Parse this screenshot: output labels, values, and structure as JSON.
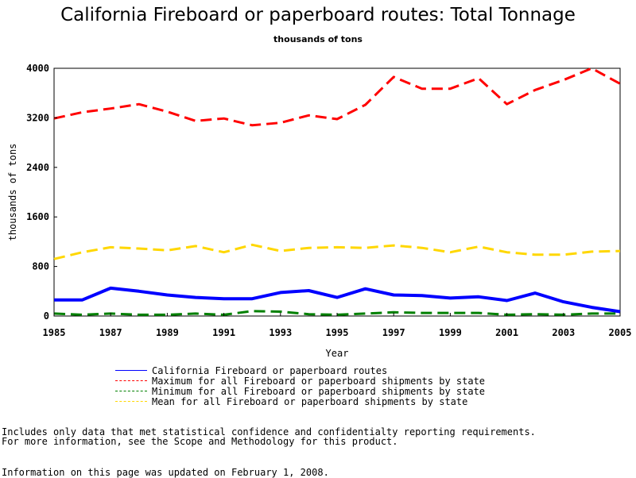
{
  "chart_data": {
    "type": "line",
    "title": "California Fireboard or paperboard routes: Total Tonnage",
    "subtitle": "thousands of tons",
    "xlabel": "Year",
    "ylabel": "thousands of tons",
    "xlim": [
      1985,
      2005
    ],
    "ylim": [
      0,
      4000
    ],
    "x_ticks": [
      "1985",
      "1987",
      "1989",
      "1991",
      "1993",
      "1995",
      "1997",
      "1999",
      "2001",
      "2003",
      "2005"
    ],
    "y_ticks": [
      "0",
      "800",
      "1600",
      "2400",
      "3200",
      "4000"
    ],
    "grid": false,
    "legend_position": "bottom",
    "x": [
      1985,
      1986,
      1987,
      1988,
      1989,
      1990,
      1991,
      1992,
      1993,
      1994,
      1995,
      1996,
      1997,
      1998,
      1999,
      2000,
      2001,
      2002,
      2003,
      2004,
      2005
    ],
    "series": [
      {
        "name": "California Fireboard or paperboard routes",
        "color": "#0000ff",
        "dash": "solid",
        "values": [
          260,
          260,
          450,
          400,
          340,
          300,
          280,
          280,
          380,
          410,
          300,
          440,
          340,
          330,
          290,
          310,
          250,
          370,
          230,
          140,
          70
        ]
      },
      {
        "name": "Maximum for all Fireboard or paperboard shipments by state",
        "color": "#ff0000",
        "dash": "dashed",
        "values": [
          3190,
          3290,
          3350,
          3420,
          3300,
          3150,
          3190,
          3080,
          3120,
          3240,
          3180,
          3410,
          3860,
          3670,
          3670,
          3840,
          3420,
          3650,
          3810,
          4000,
          3750
        ]
      },
      {
        "name": "Minimum for all Fireboard or paperboard shipments by state",
        "color": "#008000",
        "dash": "dashed",
        "values": [
          40,
          20,
          40,
          20,
          20,
          40,
          20,
          80,
          70,
          30,
          20,
          40,
          60,
          50,
          50,
          50,
          20,
          30,
          20,
          40,
          40
        ]
      },
      {
        "name": "Mean for all Fireboard or paperboard shipments by state",
        "color": "#ffd700",
        "dash": "dashed",
        "values": [
          920,
          1030,
          1110,
          1090,
          1060,
          1130,
          1030,
          1150,
          1050,
          1100,
          1110,
          1100,
          1140,
          1100,
          1030,
          1120,
          1030,
          990,
          990,
          1040,
          1050
        ]
      }
    ]
  },
  "notes": {
    "line1": "Includes only data that met statistical confidence and confidentialty reporting requirements.",
    "line2": "For more information, see the Scope and Methodology for this product.",
    "line3": "Information on this page was updated on February 1, 2008."
  }
}
